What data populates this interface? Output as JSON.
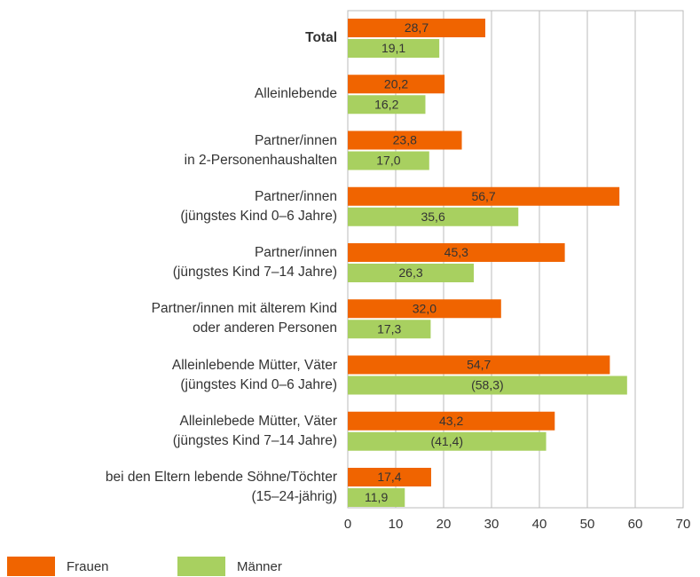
{
  "chart_data": {
    "type": "bar",
    "orientation": "horizontal",
    "categories": [
      "Total",
      "Alleinlebende",
      "Partner/innen\nin 2-Personenhaushalten",
      "Partner/innen\n(jüngstes Kind 0–6 Jahre)",
      "Partner/innen\n(jüngstes Kind 7–14 Jahre)",
      "Partner/innen mit älterem Kind\noder anderen Personen",
      "Alleinlebende Mütter, Väter\n(jüngstes Kind 0–6 Jahre)",
      "Alleinlebede Mütter, Väter\n(jüngstes Kind 7–14 Jahre)",
      "bei den Eltern lebende Söhne/Töchter\n(15–24-jährig)"
    ],
    "series": [
      {
        "name": "Frauen",
        "color": "#f06400",
        "values": [
          28.7,
          20.2,
          23.8,
          56.7,
          45.3,
          32.0,
          54.7,
          43.2,
          17.4
        ],
        "value_labels": [
          "28,7",
          "20,2",
          "23,8",
          "56,7",
          "45,3",
          "32,0",
          "54,7",
          "43,2",
          "17,4"
        ]
      },
      {
        "name": "Männer",
        "color": "#a8d060",
        "values": [
          19.1,
          16.2,
          17.0,
          35.6,
          26.3,
          17.3,
          58.3,
          41.4,
          11.9
        ],
        "value_labels": [
          "19,1",
          "16,2",
          "17,0",
          "35,6",
          "26,3",
          "17,3",
          "(58,3)",
          "(41,4)",
          "11,9"
        ]
      }
    ],
    "xlim": [
      0,
      70
    ],
    "xticks": [
      0,
      10,
      20,
      30,
      40,
      50,
      60,
      70
    ],
    "grid": true,
    "legend": "bottom-left"
  }
}
